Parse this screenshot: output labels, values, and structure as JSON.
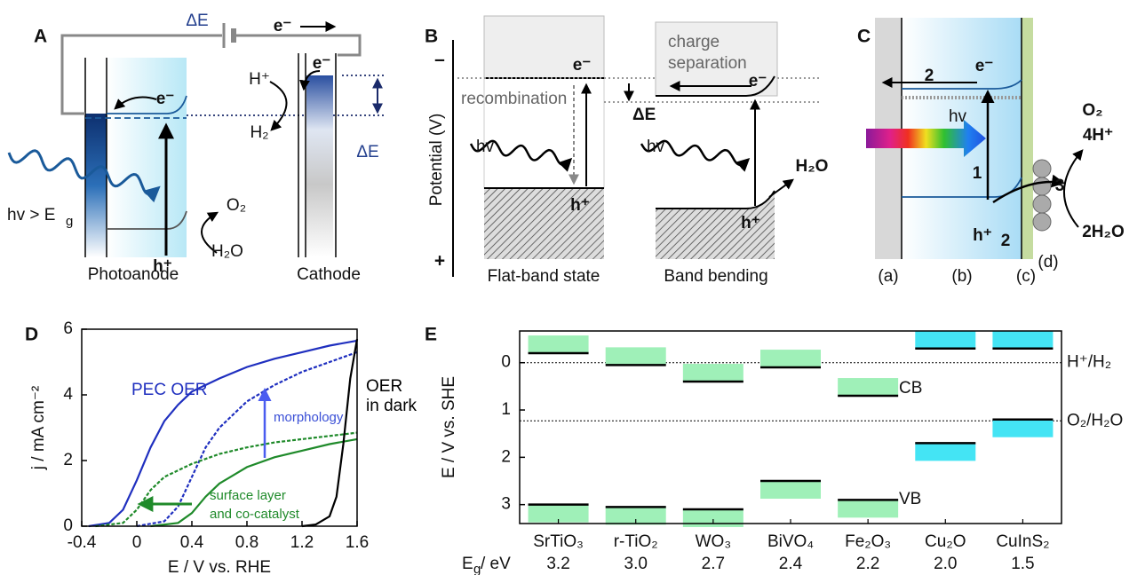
{
  "panel_a": {
    "label": "A",
    "texts": [
      "ΔE",
      "e⁻",
      "e⁻",
      "H⁺",
      "H₂",
      "e⁻",
      "O₂",
      "H₂O",
      "h⁺",
      "ΔE",
      "Photoanode",
      "Cathode",
      "hv > E",
      "g"
    ]
  },
  "panel_b": {
    "label": "B",
    "texts": [
      "–",
      "+",
      "Potential (V)",
      "recombination",
      "charge",
      "separation",
      "e⁻",
      "hv",
      "h⁺",
      "ΔE",
      "e⁻",
      "hv",
      "h⁺",
      "H₂O",
      "Flat-band state",
      "Band bending"
    ]
  },
  "panel_c": {
    "label": "C",
    "texts": [
      "2",
      "e⁻",
      "hv",
      "1",
      "h⁺",
      "2",
      "3",
      "O₂",
      "4H⁺",
      "2H₂O",
      "(d)",
      "(a)",
      "(b)",
      "(c)"
    ]
  },
  "chart_data": [
    {
      "type": "line",
      "title": "D",
      "xlabel": "E / V vs. RHE",
      "ylabel": "j / mA cm⁻²",
      "xlim": [
        -0.4,
        1.6
      ],
      "ylim": [
        0,
        6
      ],
      "xticks": [
        -0.4,
        0,
        0.4,
        0.8,
        1.2,
        1.6
      ],
      "yticks": [
        0,
        2,
        4,
        6
      ],
      "annotations": [
        "PEC OER",
        "morphology",
        "OER",
        "in dark",
        "surface layer",
        "and co-catalyst"
      ],
      "series": [
        {
          "color": "#1f2fbf",
          "dashed": false,
          "x": [
            -0.35,
            -0.2,
            -0.1,
            0,
            0.1,
            0.2,
            0.3,
            0.4,
            0.6,
            0.8,
            1.0,
            1.2,
            1.4,
            1.6
          ],
          "values": [
            0,
            0.1,
            0.5,
            1.4,
            2.4,
            3.2,
            3.7,
            4.1,
            4.5,
            4.85,
            5.1,
            5.3,
            5.5,
            5.65
          ]
        },
        {
          "color": "#1f2fbf",
          "dashed": true,
          "x": [
            0,
            0.2,
            0.3,
            0.4,
            0.5,
            0.6,
            0.8,
            1.0,
            1.2,
            1.4,
            1.6
          ],
          "values": [
            0,
            0.15,
            0.6,
            1.5,
            2.4,
            3.0,
            3.8,
            4.3,
            4.7,
            5.0,
            5.3
          ]
        },
        {
          "color": "#1f8a2a",
          "dashed": true,
          "x": [
            -0.3,
            -0.1,
            0,
            0.1,
            0.2,
            0.4,
            0.6,
            0.8,
            1.0,
            1.2,
            1.4,
            1.6
          ],
          "values": [
            0,
            0.1,
            0.5,
            1.1,
            1.5,
            1.9,
            2.2,
            2.4,
            2.55,
            2.65,
            2.75,
            2.85
          ]
        },
        {
          "color": "#1f8a2a",
          "dashed": false,
          "x": [
            0.1,
            0.3,
            0.4,
            0.5,
            0.6,
            0.8,
            1.0,
            1.2,
            1.4,
            1.6
          ],
          "values": [
            0,
            0.1,
            0.4,
            0.9,
            1.3,
            1.8,
            2.1,
            2.3,
            2.5,
            2.65
          ]
        },
        {
          "color": "#000000",
          "dashed": false,
          "x": [
            1.2,
            1.3,
            1.4,
            1.45,
            1.5,
            1.55,
            1.6
          ],
          "values": [
            0,
            0.05,
            0.3,
            0.9,
            2.5,
            4.5,
            5.7
          ]
        }
      ]
    },
    {
      "type": "band",
      "title": "E",
      "ylabel": "E / V vs. SHE",
      "ylim": [
        -0.67,
        3.4
      ],
      "y_inverted": true,
      "yticks": [
        0,
        1,
        2,
        3
      ],
      "categories": [
        "SrTiO₃",
        "r-TiO₂",
        "WO₃",
        "BiVO₄",
        "Fe₂O₃",
        "Cu₂O",
        "CuInS₂"
      ],
      "colors": [
        "#9ff0b8",
        "#9ff0b8",
        "#9ff0b8",
        "#9ff0b8",
        "#9ff0b8",
        "#44e4f4",
        "#44e4f4"
      ],
      "series": [
        {
          "values": [
            -0.2,
            0.05,
            0.4,
            0.1,
            0.7,
            -0.3,
            -0.3
          ]
        },
        {
          "values": [
            3.0,
            3.05,
            3.1,
            2.5,
            2.9,
            1.7,
            1.2
          ]
        }
      ],
      "band_gap_label": [
        "E",
        "g",
        " / eV"
      ],
      "band_gaps": {
        "values": [
          3.2,
          3.0,
          2.7,
          2.4,
          2.2,
          2.0,
          1.5
        ],
        "value_labels": [
          "3.2",
          "3.0",
          "2.7",
          "2.4",
          "2.2",
          "2.0",
          "1.5"
        ]
      },
      "reference_lines": [
        {
          "value": 0,
          "label": "H⁺/H₂"
        },
        {
          "value": 1.23,
          "label": "O₂/H₂O"
        }
      ],
      "annotations": [
        "CB",
        "VB"
      ]
    }
  ]
}
